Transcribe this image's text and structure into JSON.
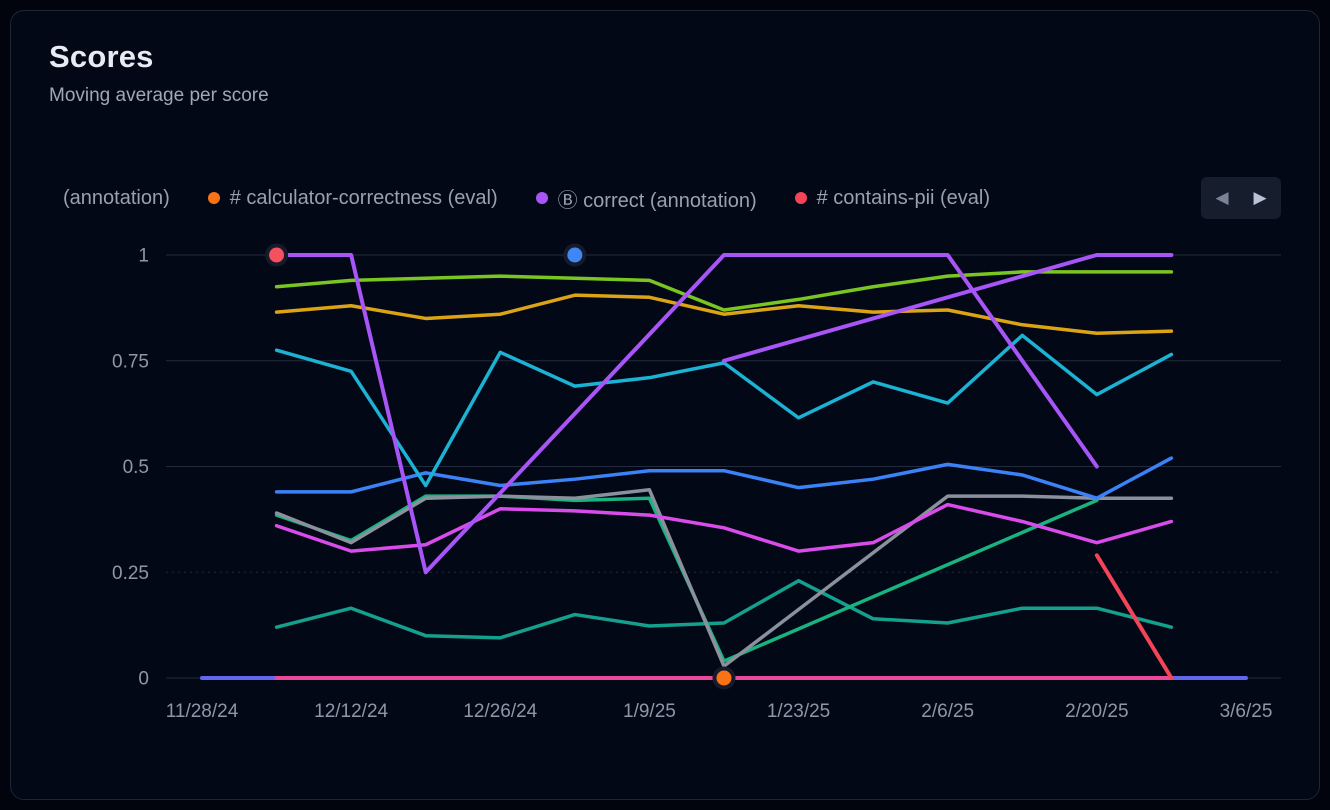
{
  "card": {
    "title": "Scores",
    "subtitle": "Moving average per score"
  },
  "legend": {
    "items": [
      {
        "label": "(annotation)",
        "color": null
      },
      {
        "label": "# calculator-correctness (eval)",
        "color": "#f97316"
      },
      {
        "label": "Ⓑ correct (annotation)",
        "color": "#a855f7"
      },
      {
        "label": "# contains-pii (eval)",
        "color": "#f44458"
      }
    ],
    "nav": {
      "prev_icon": "◀",
      "next_icon": "▶"
    }
  },
  "chart_data": {
    "type": "line",
    "title": "Scores",
    "subtitle": "Moving average per score",
    "ylim": [
      0,
      1
    ],
    "y_ticks": [
      0,
      0.25,
      0.5,
      0.75,
      1
    ],
    "y_tick_labels": [
      "0",
      "0.25",
      "0.5",
      "0.75",
      "1"
    ],
    "dashed_grid_ticks": [
      0.25
    ],
    "x_unit": "weeks since 11/28/24",
    "x_domain_weeks": [
      0,
      14
    ],
    "x_tick_weeks": [
      0,
      2,
      4,
      6,
      8,
      10,
      12,
      14
    ],
    "x_tick_labels": [
      "11/28/24",
      "12/12/24",
      "12/26/24",
      "1/9/25",
      "1/23/25",
      "2/6/25",
      "2/20/25",
      "3/6/25"
    ],
    "grid": true,
    "legend_position": "top",
    "series": [
      {
        "name": "indigo-baseline",
        "color": "#6366f1",
        "width": 4,
        "points": [
          [
            0,
            0
          ],
          [
            14,
            0
          ]
        ]
      },
      {
        "name": "pink-baseline",
        "color": "#ec4899",
        "width": 4,
        "points": [
          [
            1,
            0
          ],
          [
            13,
            0
          ]
        ]
      },
      {
        "name": "teal-low",
        "color": "#14a08d",
        "width": 3.5,
        "points": [
          [
            1,
            0.12
          ],
          [
            2,
            0.165
          ],
          [
            3,
            0.1
          ],
          [
            4,
            0.095
          ],
          [
            5,
            0.15
          ],
          [
            6,
            0.123
          ],
          [
            7,
            0.13
          ],
          [
            8,
            0.23
          ],
          [
            9,
            0.14
          ],
          [
            10,
            0.13
          ],
          [
            11,
            0.165
          ],
          [
            12,
            0.165
          ],
          [
            13,
            0.12
          ]
        ]
      },
      {
        "name": "emerald",
        "color": "#18b380",
        "width": 3.5,
        "points": [
          [
            1,
            0.385
          ],
          [
            2,
            0.325
          ],
          [
            3,
            0.43
          ],
          [
            4,
            0.43
          ],
          [
            5,
            0.42
          ],
          [
            6,
            0.425
          ],
          [
            7,
            0.04
          ],
          [
            12,
            0.42
          ]
        ]
      },
      {
        "name": "gray",
        "color": "#8b919c",
        "width": 3.5,
        "points": [
          [
            1,
            0.39
          ],
          [
            2,
            0.32
          ],
          [
            3,
            0.425
          ],
          [
            4,
            0.43
          ],
          [
            5,
            0.425
          ],
          [
            6,
            0.445
          ],
          [
            7,
            0.028
          ],
          [
            10,
            0.43
          ],
          [
            11,
            0.43
          ],
          [
            12,
            0.425
          ],
          [
            13,
            0.425
          ]
        ]
      },
      {
        "name": "fuchsia",
        "color": "#d94ceb",
        "width": 3.5,
        "points": [
          [
            1,
            0.36
          ],
          [
            2,
            0.3
          ],
          [
            3,
            0.315
          ],
          [
            4,
            0.4
          ],
          [
            5,
            0.395
          ],
          [
            6,
            0.385
          ],
          [
            7,
            0.355
          ],
          [
            8,
            0.3
          ],
          [
            9,
            0.32
          ],
          [
            10,
            0.41
          ],
          [
            11,
            0.37
          ],
          [
            12,
            0.32
          ],
          [
            13,
            0.37
          ]
        ]
      },
      {
        "name": "blue",
        "color": "#3b82f6",
        "width": 3.5,
        "points": [
          [
            1,
            0.44
          ],
          [
            2,
            0.44
          ],
          [
            3,
            0.485
          ],
          [
            4,
            0.455
          ],
          [
            5,
            0.47
          ],
          [
            6,
            0.49
          ],
          [
            7,
            0.49
          ],
          [
            8,
            0.45
          ],
          [
            9,
            0.47
          ],
          [
            10,
            0.505
          ],
          [
            11,
            0.48
          ],
          [
            12,
            0.425
          ],
          [
            13,
            0.52
          ]
        ]
      },
      {
        "name": "cyan",
        "color": "#1cb2d4",
        "width": 3.5,
        "points": [
          [
            1,
            0.775
          ],
          [
            2,
            0.725
          ],
          [
            3,
            0.455
          ],
          [
            4,
            0.77
          ],
          [
            5,
            0.69
          ],
          [
            6,
            0.71
          ],
          [
            7,
            0.745
          ],
          [
            8,
            0.615
          ],
          [
            9,
            0.7
          ],
          [
            10,
            0.65
          ],
          [
            11,
            0.81
          ],
          [
            12,
            0.67
          ],
          [
            13,
            0.765
          ]
        ]
      },
      {
        "name": "amber",
        "color": "#dca414",
        "width": 3.5,
        "points": [
          [
            1,
            0.865
          ],
          [
            2,
            0.88
          ],
          [
            3,
            0.85
          ],
          [
            4,
            0.86
          ],
          [
            5,
            0.905
          ],
          [
            6,
            0.9
          ],
          [
            7,
            0.86
          ],
          [
            8,
            0.88
          ],
          [
            9,
            0.865
          ],
          [
            10,
            0.87
          ],
          [
            11,
            0.835
          ],
          [
            12,
            0.815
          ],
          [
            13,
            0.82
          ]
        ]
      },
      {
        "name": "lime",
        "color": "#79c521",
        "width": 3.5,
        "points": [
          [
            1,
            0.925
          ],
          [
            2,
            0.94
          ],
          [
            3,
            0.945
          ],
          [
            4,
            0.95
          ],
          [
            5,
            0.945
          ],
          [
            6,
            0.94
          ],
          [
            7,
            0.87
          ],
          [
            8,
            0.895
          ],
          [
            9,
            0.925
          ],
          [
            10,
            0.95
          ],
          [
            11,
            0.96
          ],
          [
            12,
            0.96
          ],
          [
            13,
            0.96
          ]
        ]
      },
      {
        "name": "purple-rising",
        "color": "#a855f7",
        "width": 4,
        "points": [
          [
            7,
            0.75
          ],
          [
            12,
            1
          ],
          [
            13,
            1
          ]
        ]
      },
      {
        "name": "correct-annotation-purple",
        "color": "#a855f7",
        "width": 4,
        "points": [
          [
            1,
            1
          ],
          [
            2,
            1
          ],
          [
            3,
            0.25
          ],
          [
            7,
            1
          ],
          [
            10,
            1
          ],
          [
            12,
            0.5
          ]
        ]
      },
      {
        "name": "contains-pii-red",
        "color": "#f44458",
        "width": 4,
        "points": [
          [
            12,
            0.29
          ],
          [
            13,
            0
          ]
        ]
      }
    ],
    "point_markers": [
      {
        "name": "contains-pii-dot",
        "color": "#f4505e",
        "week": 1,
        "value": 1
      },
      {
        "name": "blue-dot",
        "color": "#3f87f5",
        "week": 5,
        "value": 1
      },
      {
        "name": "calculator-correctness-dot",
        "color": "#f97316",
        "week": 7,
        "value": 0
      }
    ]
  }
}
